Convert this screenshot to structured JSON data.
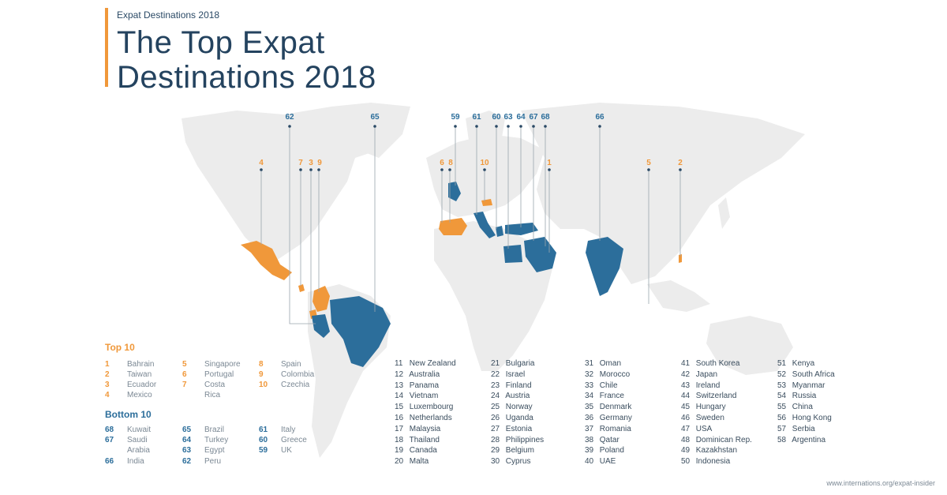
{
  "header": {
    "subtitle": "Expat Destinations 2018",
    "title_line1": "The Top Expat",
    "title_line2": "Destinations 2018"
  },
  "colors": {
    "accent": "#f0983a",
    "bottom": "#2c6e9b",
    "land": "#ececec"
  },
  "pins_top": [
    {
      "label": "4",
      "rank": "4"
    },
    {
      "label": "7",
      "rank": "7"
    },
    {
      "label": "3",
      "rank": "3"
    },
    {
      "label": "9",
      "rank": "9"
    },
    {
      "label": "6",
      "rank": "6"
    },
    {
      "label": "8",
      "rank": "8"
    },
    {
      "label": "10",
      "rank": "10"
    },
    {
      "label": "1",
      "rank": "1"
    },
    {
      "label": "5",
      "rank": "5"
    },
    {
      "label": "2",
      "rank": "2"
    }
  ],
  "pins_bottom": [
    {
      "label": "62"
    },
    {
      "label": "65"
    },
    {
      "label": "59"
    },
    {
      "label": "61"
    },
    {
      "label": "60"
    },
    {
      "label": "63"
    },
    {
      "label": "64"
    },
    {
      "label": "67"
    },
    {
      "label": "68"
    },
    {
      "label": "66"
    }
  ],
  "legend": {
    "top_title": "Top 10",
    "bottom_title": "Bottom 10",
    "top": [
      {
        "n": "1",
        "name": "Bahrain"
      },
      {
        "n": "2",
        "name": "Taiwan"
      },
      {
        "n": "3",
        "name": "Ecuador"
      },
      {
        "n": "4",
        "name": "Mexico"
      },
      {
        "n": "5",
        "name": "Singapore"
      },
      {
        "n": "6",
        "name": "Portugal"
      },
      {
        "n": "7",
        "name": "Costa"
      },
      {
        "n": "",
        "name": "Rica"
      },
      {
        "n": "8",
        "name": "Spain"
      },
      {
        "n": "9",
        "name": "Colombia"
      },
      {
        "n": "10",
        "name": "Czechia"
      }
    ],
    "bottom": [
      {
        "n": "68",
        "name": "Kuwait"
      },
      {
        "n": "67",
        "name": "Saudi"
      },
      {
        "n": "",
        "name": "Arabia"
      },
      {
        "n": "66",
        "name": "India"
      },
      {
        "n": "65",
        "name": "Brazil"
      },
      {
        "n": "64",
        "name": "Turkey"
      },
      {
        "n": "63",
        "name": "Egypt"
      },
      {
        "n": "62",
        "name": "Peru"
      },
      {
        "n": "61",
        "name": "Italy"
      },
      {
        "n": "60",
        "name": "Greece"
      },
      {
        "n": "59",
        "name": "UK"
      }
    ]
  },
  "ranks": [
    [
      {
        "n": "11",
        "name": "New Zealand"
      },
      {
        "n": "12",
        "name": "Australia"
      },
      {
        "n": "13",
        "name": "Panama"
      },
      {
        "n": "14",
        "name": "Vietnam"
      },
      {
        "n": "15",
        "name": "Luxembourg"
      },
      {
        "n": "16",
        "name": "Netherlands"
      },
      {
        "n": "17",
        "name": "Malaysia"
      },
      {
        "n": "18",
        "name": "Thailand"
      },
      {
        "n": "19",
        "name": "Canada"
      },
      {
        "n": "20",
        "name": "Malta"
      }
    ],
    [
      {
        "n": "21",
        "name": "Bulgaria"
      },
      {
        "n": "22",
        "name": "Israel"
      },
      {
        "n": "23",
        "name": "Finland"
      },
      {
        "n": "24",
        "name": "Austria"
      },
      {
        "n": "25",
        "name": "Norway"
      },
      {
        "n": "26",
        "name": "Uganda"
      },
      {
        "n": "27",
        "name": "Estonia"
      },
      {
        "n": "28",
        "name": "Philippines"
      },
      {
        "n": "29",
        "name": "Belgium"
      },
      {
        "n": "30",
        "name": "Cyprus"
      }
    ],
    [
      {
        "n": "31",
        "name": "Oman"
      },
      {
        "n": "32",
        "name": "Morocco"
      },
      {
        "n": "33",
        "name": "Chile"
      },
      {
        "n": "34",
        "name": "France"
      },
      {
        "n": "35",
        "name": "Denmark"
      },
      {
        "n": "36",
        "name": "Germany"
      },
      {
        "n": "37",
        "name": "Romania"
      },
      {
        "n": "38",
        "name": "Qatar"
      },
      {
        "n": "39",
        "name": "Poland"
      },
      {
        "n": "40",
        "name": "UAE"
      }
    ],
    [
      {
        "n": "41",
        "name": "South Korea"
      },
      {
        "n": "42",
        "name": "Japan"
      },
      {
        "n": "43",
        "name": "Ireland"
      },
      {
        "n": "44",
        "name": "Switzerland"
      },
      {
        "n": "45",
        "name": "Hungary"
      },
      {
        "n": "46",
        "name": "Sweden"
      },
      {
        "n": "47",
        "name": "USA"
      },
      {
        "n": "48",
        "name": "Dominican Rep."
      },
      {
        "n": "49",
        "name": "Kazakhstan"
      },
      {
        "n": "50",
        "name": "Indonesia"
      }
    ],
    [
      {
        "n": "51",
        "name": "Kenya"
      },
      {
        "n": "52",
        "name": "South Africa"
      },
      {
        "n": "53",
        "name": "Myanmar"
      },
      {
        "n": "54",
        "name": "Russia"
      },
      {
        "n": "55",
        "name": "China"
      },
      {
        "n": "56",
        "name": "Hong Kong"
      },
      {
        "n": "57",
        "name": "Serbia"
      },
      {
        "n": "58",
        "name": "Argentina"
      }
    ]
  ],
  "footer": "www.internations.org/expat-insider"
}
